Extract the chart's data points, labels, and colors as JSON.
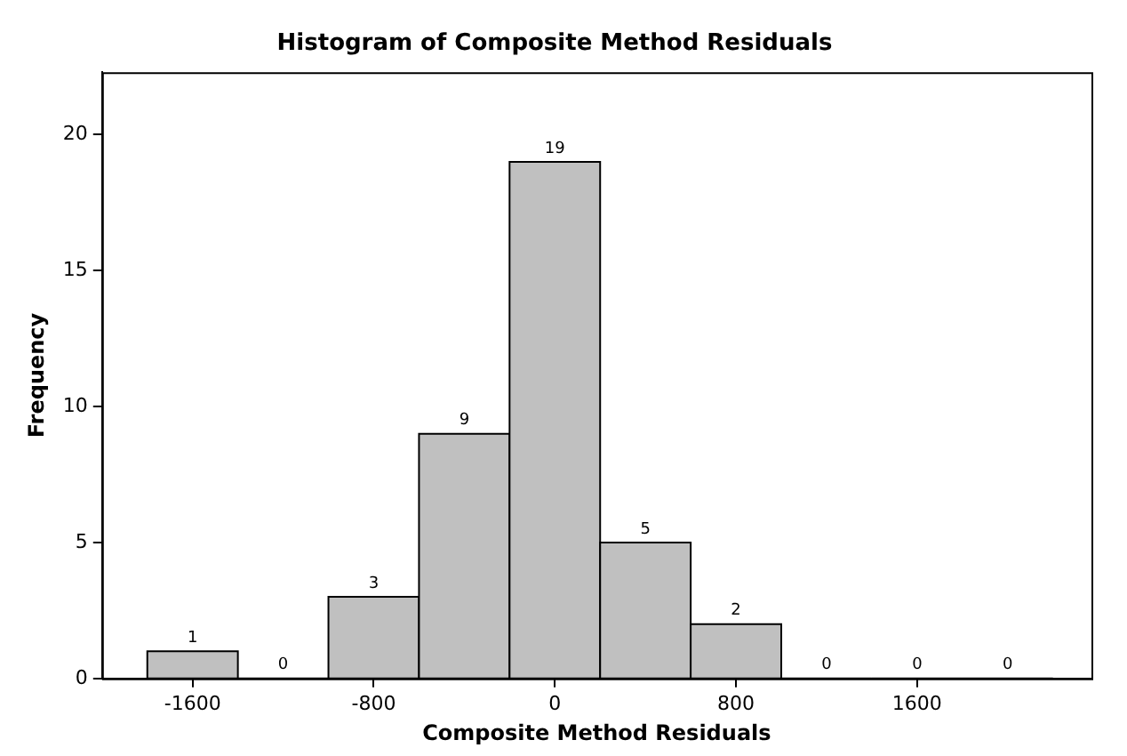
{
  "chart_data": {
    "type": "histogram",
    "title": "Histogram of Composite Method Residuals",
    "xlabel": "Composite Method Residuals",
    "ylabel": "Frequency",
    "bins": [
      -1800,
      -1400,
      -1000,
      -600,
      -200,
      200,
      600,
      1000,
      1400,
      1800,
      2200
    ],
    "values": [
      1,
      0,
      3,
      9,
      19,
      5,
      2,
      0,
      0,
      0
    ],
    "color": "#c0c0c0",
    "xlim": [
      -2000,
      2370
    ],
    "xticks": [
      -1600,
      -800,
      0,
      800,
      1600
    ],
    "ylim": [
      0,
      22.3
    ],
    "yticks": [
      0,
      5,
      10,
      15,
      20
    ],
    "data_labels": true,
    "grid": false,
    "legend": false
  }
}
